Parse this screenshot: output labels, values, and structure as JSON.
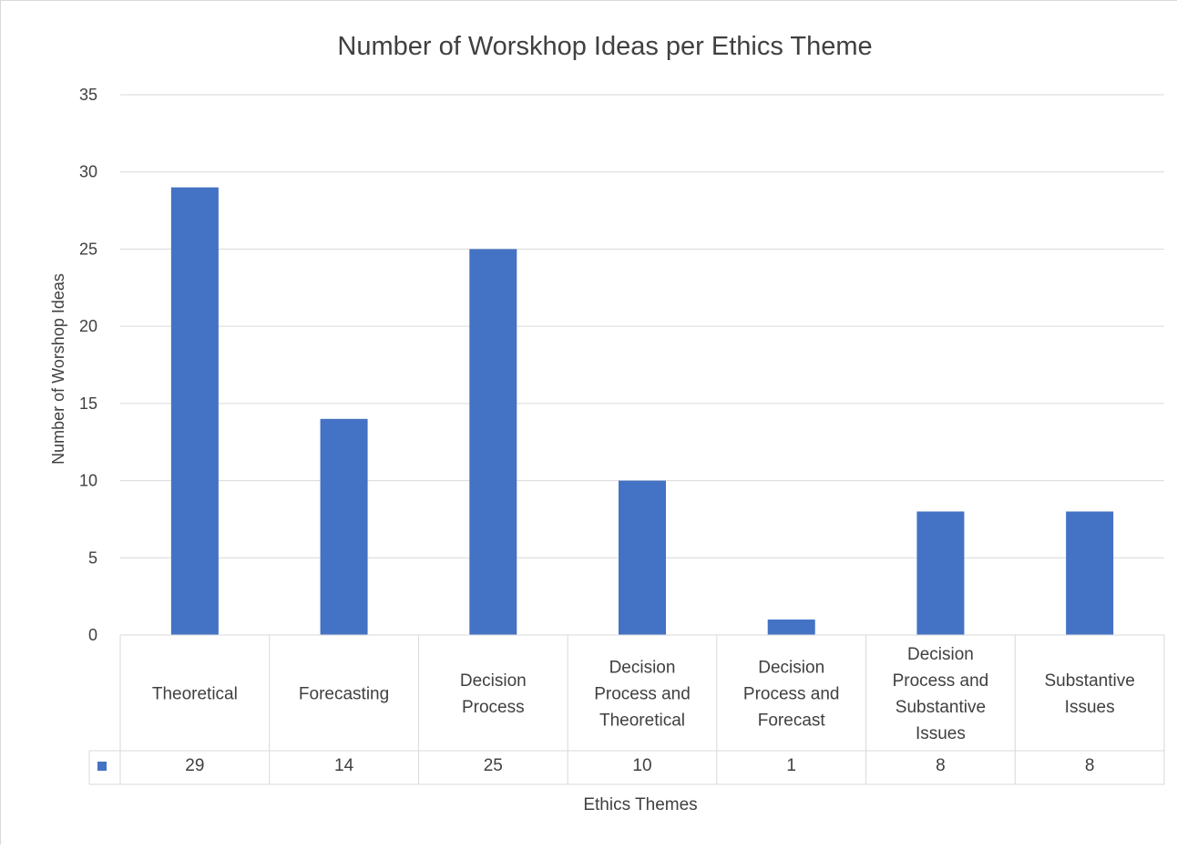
{
  "chart_data": {
    "type": "bar",
    "title": "Number of Worskhop Ideas per Ethics Theme",
    "xlabel": "Ethics Themes",
    "ylabel": "Number of Worshop Ideas",
    "ylim": [
      0,
      35
    ],
    "yticks": [
      "0",
      "5",
      "10",
      "15",
      "20",
      "25",
      "30",
      "35"
    ],
    "categories": [
      [
        "Theoretical"
      ],
      [
        "Forecasting"
      ],
      [
        "Decision",
        "Process"
      ],
      [
        "Decision",
        "Process and",
        "Theoretical"
      ],
      [
        "Decision",
        "Process and",
        "Forecast"
      ],
      [
        "Decision",
        "Process and",
        "Substantive",
        "Issues"
      ],
      [
        "Substantive",
        "Issues"
      ]
    ],
    "values": [
      29,
      14,
      25,
      10,
      1,
      8,
      8
    ],
    "data_table": true,
    "grid": true,
    "legend": "none",
    "bar_color": "#4472c4",
    "grid_color": "#d9d9d9"
  }
}
